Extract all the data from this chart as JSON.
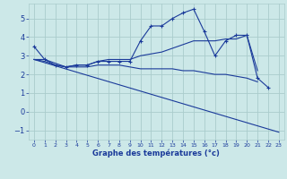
{
  "xlabel": "Graphe des températures (°c)",
  "background_color": "#cce8e8",
  "grid_color": "#aacccc",
  "line_color": "#1a3a9a",
  "xlim": [
    -0.5,
    23.5
  ],
  "ylim": [
    -1.5,
    5.8
  ],
  "yticks": [
    -1,
    0,
    1,
    2,
    3,
    4,
    5
  ],
  "xticks": [
    0,
    1,
    2,
    3,
    4,
    5,
    6,
    7,
    8,
    9,
    10,
    11,
    12,
    13,
    14,
    15,
    16,
    17,
    18,
    19,
    20,
    21,
    22,
    23
  ],
  "series": [
    {
      "x": [
        0,
        1,
        2,
        3,
        4,
        5,
        6,
        7,
        8,
        9,
        10,
        11,
        12,
        13,
        14,
        15,
        16,
        17,
        18,
        19,
        20,
        21,
        22
      ],
      "y": [
        3.5,
        2.8,
        2.5,
        2.4,
        2.5,
        2.5,
        2.7,
        2.7,
        2.7,
        2.7,
        3.8,
        4.6,
        4.6,
        5.0,
        5.3,
        5.5,
        4.3,
        3.0,
        3.8,
        4.1,
        4.1,
        1.8,
        1.3
      ],
      "marker": true
    },
    {
      "x": [
        0,
        1,
        2,
        3,
        4,
        5,
        6,
        7,
        8,
        9,
        10,
        11,
        12,
        13,
        14,
        15,
        16,
        17,
        18,
        19,
        20,
        21
      ],
      "y": [
        2.8,
        2.8,
        2.6,
        2.4,
        2.5,
        2.5,
        2.7,
        2.8,
        2.8,
        2.8,
        3.0,
        3.1,
        3.2,
        3.4,
        3.6,
        3.8,
        3.8,
        3.8,
        3.9,
        3.9,
        4.1,
        2.2
      ],
      "marker": false
    },
    {
      "x": [
        0,
        1,
        2,
        3,
        4,
        5,
        6,
        7,
        8,
        9,
        10,
        11,
        12,
        13,
        14,
        15,
        16,
        17,
        18,
        19,
        20,
        21
      ],
      "y": [
        2.8,
        2.7,
        2.5,
        2.4,
        2.4,
        2.4,
        2.5,
        2.5,
        2.5,
        2.4,
        2.3,
        2.3,
        2.3,
        2.3,
        2.2,
        2.2,
        2.1,
        2.0,
        2.0,
        1.9,
        1.8,
        1.6
      ],
      "marker": false
    },
    {
      "x": [
        0,
        23
      ],
      "y": [
        2.8,
        -1.1
      ],
      "marker": false
    }
  ]
}
